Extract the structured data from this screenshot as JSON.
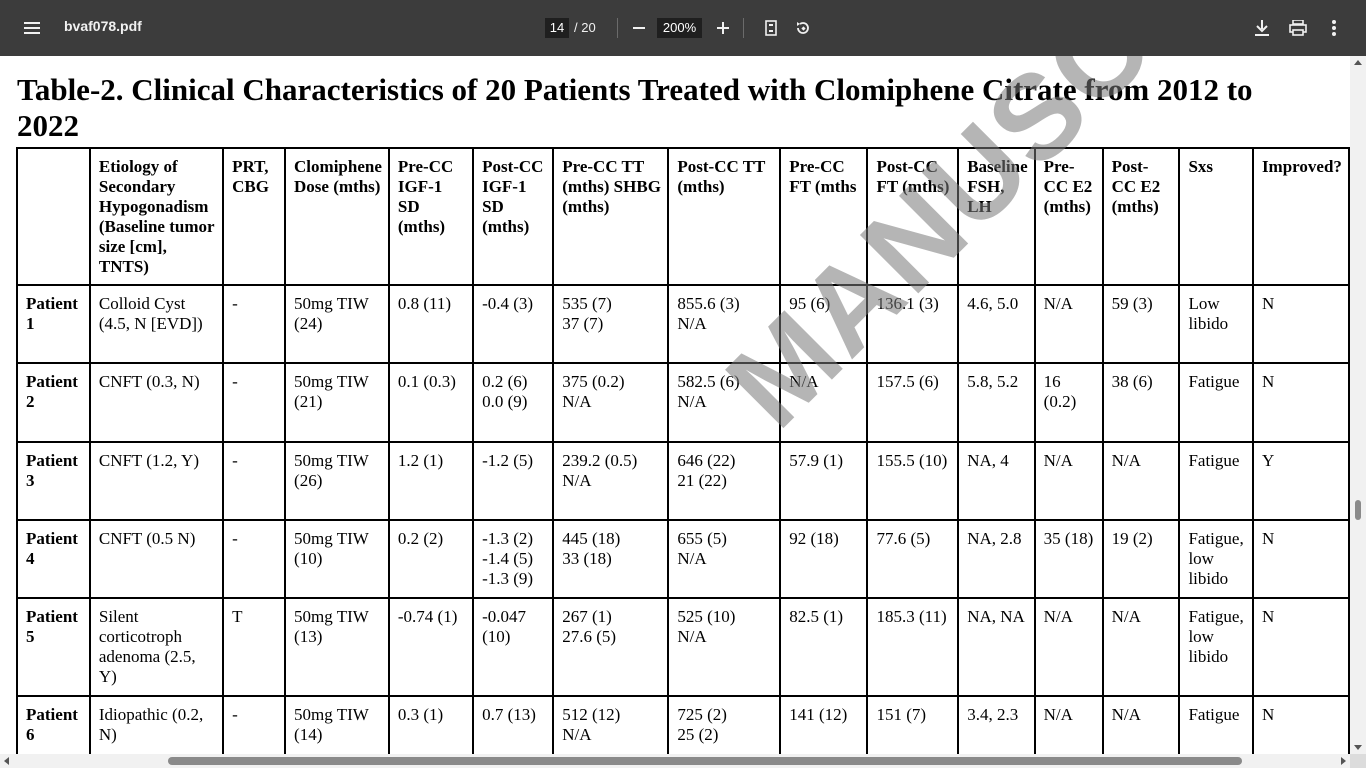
{
  "toolbar": {
    "menu_icon": "hamburger-menu-icon",
    "file_name": "bvaf078.pdf",
    "current_page": "14",
    "page_total": "/ 20",
    "zoom_value": "200%",
    "zoom_out_icon": "minus-icon",
    "zoom_in_icon": "plus-icon",
    "fit_icon": "fit-page-icon",
    "rotate_icon": "rotate-icon",
    "download_icon": "download-icon",
    "print_icon": "print-icon",
    "more_icon": "more-vertical-icon",
    "background_color": "#3c3c3c"
  },
  "document": {
    "title": "Table-2. Clinical Characteristics of 20 Patients Treated with Clomiphene Citrate from 2012 to 2022",
    "watermark": "MANUSCRIPT",
    "columns": [
      "",
      "Etiology of Secondary Hypogonadism (Baseline tumor size [cm], TNTS)",
      "PRT, CBG",
      "Clomiphene Dose (mths)",
      "Pre-CC IGF-1 SD (mths)",
      "Post-CC IGF-1 SD (mths)",
      "Pre-CC TT (mths) SHBG (mths)",
      "Post-CC TT (mths)",
      "Pre-CC FT (mths",
      "Post-CC FT (mths)",
      "Baseline FSH, LH",
      "Pre-CC E2 (mths)",
      "Post-CC E2 (mths)",
      "Sxs",
      "Improved?"
    ],
    "rows": [
      [
        "Patient 1",
        "Colloid Cyst (4.5, N [EVD])",
        "-",
        "50mg TIW (24)",
        "0.8 (11)",
        "-0.4 (3)",
        "535 (7)\n37 (7)",
        "855.6 (3)\nN/A",
        "95 (6)",
        "136.1 (3)",
        "4.6, 5.0",
        "N/A",
        "59 (3)",
        "Low libido",
        "N"
      ],
      [
        "Patient 2",
        "CNFT (0.3, N)",
        "-",
        "50mg TIW (21)",
        "0.1 (0.3)",
        "0.2 (6)\n0.0 (9)",
        "375 (0.2)\nN/A",
        "582.5 (6)\nN/A",
        "N/A",
        "157.5 (6)",
        "5.8, 5.2",
        "16 (0.2)",
        "38 (6)",
        "Fatigue",
        "N"
      ],
      [
        "Patient 3",
        "CNFT (1.2, Y)",
        "-",
        "50mg TIW (26)",
        "1.2 (1)",
        "-1.2 (5)",
        "239.2 (0.5)\nN/A",
        "646 (22)\n21 (22)",
        "57.9 (1)",
        "155.5 (10)",
        "NA, 4",
        "N/A",
        "N/A",
        "Fatigue",
        "Y"
      ],
      [
        "Patient 4",
        "CNFT (0.5 N)",
        "-",
        "50mg TIW (10)",
        "0.2 (2)",
        "-1.3 (2)\n-1.4 (5)\n-1.3 (9)",
        "445 (18)\n33 (18)",
        "655 (5)\nN/A",
        "92 (18)",
        "77.6 (5)",
        "NA, 2.8",
        "35 (18)",
        "19 (2)",
        "Fatigue, low libido",
        "N"
      ],
      [
        "Patient 5",
        "Silent corticotroph adenoma (2.5, Y)",
        "T",
        "50mg TIW (13)",
        "-0.74 (1)",
        "-0.047 (10)",
        "267 (1)\n27.6 (5)",
        "525 (10)\nN/A",
        "82.5 (1)",
        "185.3 (11)",
        "NA, NA",
        "N/A",
        "N/A",
        "Fatigue, low libido",
        "N"
      ],
      [
        "Patient 6",
        "Idiopathic (0.2, N)",
        "-",
        "50mg TIW (14)",
        "0.3 (1)",
        "0.7 (13)",
        "512 (12)\nN/A",
        "725 (2)\n25 (2)",
        "141 (12)",
        "151 (7)",
        "3.4, 2.3",
        "N/A",
        "N/A",
        "Fatigue",
        "N"
      ]
    ]
  }
}
